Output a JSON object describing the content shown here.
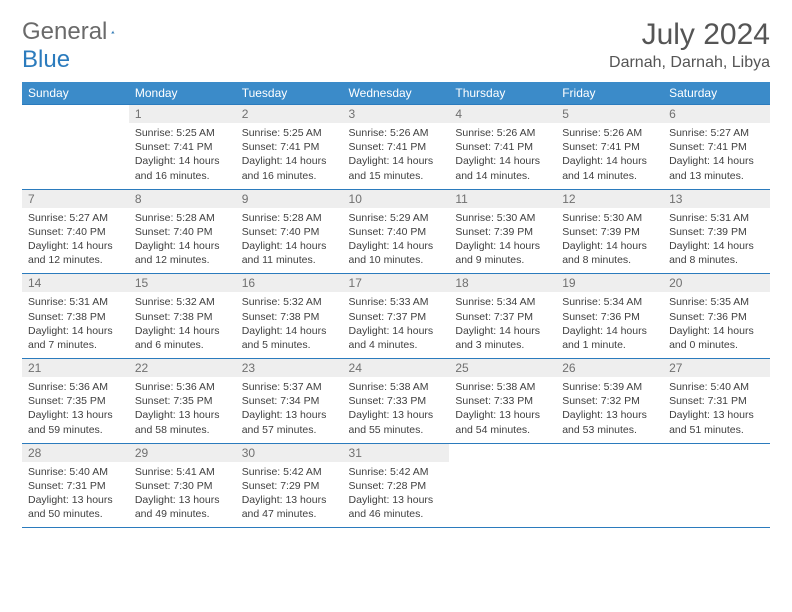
{
  "logo": {
    "word1": "General",
    "word2": "Blue"
  },
  "title": "July 2024",
  "location": "Darnah, Darnah, Libya",
  "day_headers": [
    "Sunday",
    "Monday",
    "Tuesday",
    "Wednesday",
    "Thursday",
    "Friday",
    "Saturday"
  ],
  "colors": {
    "header_bg": "#3b8bc9",
    "header_text": "#ffffff",
    "daynum_bg": "#eeeeee",
    "rule": "#2b7bbd",
    "title_text": "#555555",
    "body_text": "#404040"
  },
  "fonts": {
    "title_size_pt": 22,
    "location_size_pt": 12,
    "header_size_pt": 9,
    "cell_size_pt": 8
  },
  "layout": {
    "columns": 7,
    "rows": 5,
    "start_day_index": 1
  },
  "weeks": [
    [
      null,
      {
        "n": "1",
        "sr": "Sunrise: 5:25 AM",
        "ss": "Sunset: 7:41 PM",
        "d1": "Daylight: 14 hours",
        "d2": "and 16 minutes."
      },
      {
        "n": "2",
        "sr": "Sunrise: 5:25 AM",
        "ss": "Sunset: 7:41 PM",
        "d1": "Daylight: 14 hours",
        "d2": "and 16 minutes."
      },
      {
        "n": "3",
        "sr": "Sunrise: 5:26 AM",
        "ss": "Sunset: 7:41 PM",
        "d1": "Daylight: 14 hours",
        "d2": "and 15 minutes."
      },
      {
        "n": "4",
        "sr": "Sunrise: 5:26 AM",
        "ss": "Sunset: 7:41 PM",
        "d1": "Daylight: 14 hours",
        "d2": "and 14 minutes."
      },
      {
        "n": "5",
        "sr": "Sunrise: 5:26 AM",
        "ss": "Sunset: 7:41 PM",
        "d1": "Daylight: 14 hours",
        "d2": "and 14 minutes."
      },
      {
        "n": "6",
        "sr": "Sunrise: 5:27 AM",
        "ss": "Sunset: 7:41 PM",
        "d1": "Daylight: 14 hours",
        "d2": "and 13 minutes."
      }
    ],
    [
      {
        "n": "7",
        "sr": "Sunrise: 5:27 AM",
        "ss": "Sunset: 7:40 PM",
        "d1": "Daylight: 14 hours",
        "d2": "and 12 minutes."
      },
      {
        "n": "8",
        "sr": "Sunrise: 5:28 AM",
        "ss": "Sunset: 7:40 PM",
        "d1": "Daylight: 14 hours",
        "d2": "and 12 minutes."
      },
      {
        "n": "9",
        "sr": "Sunrise: 5:28 AM",
        "ss": "Sunset: 7:40 PM",
        "d1": "Daylight: 14 hours",
        "d2": "and 11 minutes."
      },
      {
        "n": "10",
        "sr": "Sunrise: 5:29 AM",
        "ss": "Sunset: 7:40 PM",
        "d1": "Daylight: 14 hours",
        "d2": "and 10 minutes."
      },
      {
        "n": "11",
        "sr": "Sunrise: 5:30 AM",
        "ss": "Sunset: 7:39 PM",
        "d1": "Daylight: 14 hours",
        "d2": "and 9 minutes."
      },
      {
        "n": "12",
        "sr": "Sunrise: 5:30 AM",
        "ss": "Sunset: 7:39 PM",
        "d1": "Daylight: 14 hours",
        "d2": "and 8 minutes."
      },
      {
        "n": "13",
        "sr": "Sunrise: 5:31 AM",
        "ss": "Sunset: 7:39 PM",
        "d1": "Daylight: 14 hours",
        "d2": "and 8 minutes."
      }
    ],
    [
      {
        "n": "14",
        "sr": "Sunrise: 5:31 AM",
        "ss": "Sunset: 7:38 PM",
        "d1": "Daylight: 14 hours",
        "d2": "and 7 minutes."
      },
      {
        "n": "15",
        "sr": "Sunrise: 5:32 AM",
        "ss": "Sunset: 7:38 PM",
        "d1": "Daylight: 14 hours",
        "d2": "and 6 minutes."
      },
      {
        "n": "16",
        "sr": "Sunrise: 5:32 AM",
        "ss": "Sunset: 7:38 PM",
        "d1": "Daylight: 14 hours",
        "d2": "and 5 minutes."
      },
      {
        "n": "17",
        "sr": "Sunrise: 5:33 AM",
        "ss": "Sunset: 7:37 PM",
        "d1": "Daylight: 14 hours",
        "d2": "and 4 minutes."
      },
      {
        "n": "18",
        "sr": "Sunrise: 5:34 AM",
        "ss": "Sunset: 7:37 PM",
        "d1": "Daylight: 14 hours",
        "d2": "and 3 minutes."
      },
      {
        "n": "19",
        "sr": "Sunrise: 5:34 AM",
        "ss": "Sunset: 7:36 PM",
        "d1": "Daylight: 14 hours",
        "d2": "and 1 minute."
      },
      {
        "n": "20",
        "sr": "Sunrise: 5:35 AM",
        "ss": "Sunset: 7:36 PM",
        "d1": "Daylight: 14 hours",
        "d2": "and 0 minutes."
      }
    ],
    [
      {
        "n": "21",
        "sr": "Sunrise: 5:36 AM",
        "ss": "Sunset: 7:35 PM",
        "d1": "Daylight: 13 hours",
        "d2": "and 59 minutes."
      },
      {
        "n": "22",
        "sr": "Sunrise: 5:36 AM",
        "ss": "Sunset: 7:35 PM",
        "d1": "Daylight: 13 hours",
        "d2": "and 58 minutes."
      },
      {
        "n": "23",
        "sr": "Sunrise: 5:37 AM",
        "ss": "Sunset: 7:34 PM",
        "d1": "Daylight: 13 hours",
        "d2": "and 57 minutes."
      },
      {
        "n": "24",
        "sr": "Sunrise: 5:38 AM",
        "ss": "Sunset: 7:33 PM",
        "d1": "Daylight: 13 hours",
        "d2": "and 55 minutes."
      },
      {
        "n": "25",
        "sr": "Sunrise: 5:38 AM",
        "ss": "Sunset: 7:33 PM",
        "d1": "Daylight: 13 hours",
        "d2": "and 54 minutes."
      },
      {
        "n": "26",
        "sr": "Sunrise: 5:39 AM",
        "ss": "Sunset: 7:32 PM",
        "d1": "Daylight: 13 hours",
        "d2": "and 53 minutes."
      },
      {
        "n": "27",
        "sr": "Sunrise: 5:40 AM",
        "ss": "Sunset: 7:31 PM",
        "d1": "Daylight: 13 hours",
        "d2": "and 51 minutes."
      }
    ],
    [
      {
        "n": "28",
        "sr": "Sunrise: 5:40 AM",
        "ss": "Sunset: 7:31 PM",
        "d1": "Daylight: 13 hours",
        "d2": "and 50 minutes."
      },
      {
        "n": "29",
        "sr": "Sunrise: 5:41 AM",
        "ss": "Sunset: 7:30 PM",
        "d1": "Daylight: 13 hours",
        "d2": "and 49 minutes."
      },
      {
        "n": "30",
        "sr": "Sunrise: 5:42 AM",
        "ss": "Sunset: 7:29 PM",
        "d1": "Daylight: 13 hours",
        "d2": "and 47 minutes."
      },
      {
        "n": "31",
        "sr": "Sunrise: 5:42 AM",
        "ss": "Sunset: 7:28 PM",
        "d1": "Daylight: 13 hours",
        "d2": "and 46 minutes."
      },
      null,
      null,
      null
    ]
  ]
}
